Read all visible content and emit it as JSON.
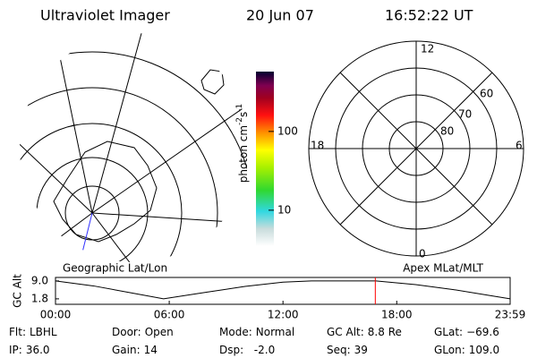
{
  "header": {
    "title": "Ultraviolet Imager",
    "date": "20 Jun 07",
    "time": "16:52:22 UT"
  },
  "colorbar": {
    "label": "photon cm",
    "exp1": "-2",
    "unit2": "s",
    "exp2": "-1",
    "lim": [
      3.5,
      575
    ],
    "log": true,
    "ticks": [
      10,
      100
    ]
  },
  "left_panel": {
    "label": "Geographic Lat/Lon"
  },
  "right_panel": {
    "label": "Apex MLat/MLT",
    "mlt_labels": [
      "12",
      "18",
      "6",
      "0"
    ],
    "lat_labels": [
      "60",
      "70",
      "80"
    ]
  },
  "timeline": {
    "ylabel": "GC Alt",
    "xlim": [
      0,
      23.983
    ],
    "ylim": [
      -0.4,
      10.4
    ],
    "xticks": [
      {
        "value": 0,
        "label": "00:00"
      },
      {
        "value": 6,
        "label": "06:00"
      },
      {
        "value": 12,
        "label": "12:00"
      },
      {
        "value": 18,
        "label": "18:00"
      },
      {
        "value": 23.983,
        "label": "23:59"
      }
    ],
    "yticks": [
      {
        "value": 9,
        "label": "9.0"
      },
      {
        "value": 1.8,
        "label": "1.8"
      }
    ],
    "x": [
      0,
      2,
      4,
      5.7,
      8,
      10,
      12,
      13.5,
      15,
      16.9,
      19,
      21,
      23,
      23.983
    ],
    "values": [
      9.0,
      7.0,
      4.2,
      1.8,
      4.5,
      6.8,
      8.5,
      9.0,
      9.0,
      9.0,
      7.5,
      5.5,
      3.0,
      1.8
    ],
    "marker": 16.87,
    "marker_color": "#ff0000"
  },
  "info": [
    [
      {
        "label": "Flt:",
        "value": "LBHL"
      },
      {
        "label": "Door:",
        "value": "Open"
      },
      {
        "label": "Mode:",
        "value": "Normal"
      },
      {
        "label": "GC Alt:",
        "value": "8.8 Re"
      },
      {
        "label": "GLat:",
        "value": "−69.6"
      }
    ],
    [
      {
        "label": "IP:",
        "value": "36.0"
      },
      {
        "label": "Gain:",
        "value": "14"
      },
      {
        "label": "Dsp:",
        "value": "  -2.0"
      },
      {
        "label": "Seq:",
        "value": "39"
      },
      {
        "label": "GLon:",
        "value": "109.0"
      }
    ]
  ]
}
